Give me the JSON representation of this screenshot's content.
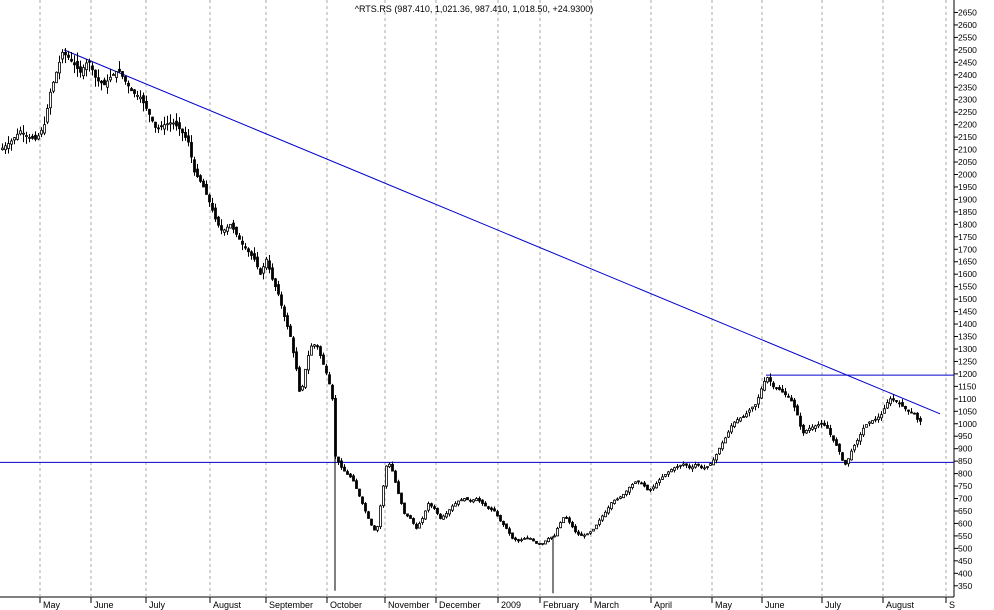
{
  "chart_data": {
    "type": "candlestick",
    "title": "^RTS.RS (987.410, 1,021.36, 987.410, 1,018.50, +24.9300)",
    "ylim": [
      325,
      2680
    ],
    "y_ticks": [
      350,
      400,
      450,
      500,
      550,
      600,
      650,
      700,
      750,
      800,
      850,
      900,
      950,
      1000,
      1050,
      1100,
      1150,
      1200,
      1250,
      1300,
      1350,
      1400,
      1450,
      1500,
      1550,
      1600,
      1650,
      1700,
      1750,
      1800,
      1850,
      1900,
      1950,
      2000,
      2050,
      2100,
      2150,
      2200,
      2250,
      2300,
      2350,
      2400,
      2450,
      2500,
      2550,
      2600,
      2650
    ],
    "x_labels": [
      "May",
      "June",
      "July",
      "August",
      "September",
      "October",
      "November",
      "December",
      "2009",
      "February",
      "March",
      "April",
      "May",
      "June",
      "July",
      "August",
      "S"
    ],
    "grid": "vertical-dashed",
    "series_color": "#000000",
    "line_color": "#0000cc",
    "price_path": [
      [
        0,
        2100
      ],
      [
        10,
        2130
      ],
      [
        20,
        2175
      ],
      [
        28,
        2150
      ],
      [
        36,
        2140
      ],
      [
        44,
        2200
      ],
      [
        50,
        2330
      ],
      [
        56,
        2410
      ],
      [
        62,
        2490
      ],
      [
        68,
        2470
      ],
      [
        74,
        2440
      ],
      [
        80,
        2410
      ],
      [
        88,
        2460
      ],
      [
        96,
        2380
      ],
      [
        104,
        2360
      ],
      [
        110,
        2390
      ],
      [
        118,
        2420
      ],
      [
        124,
        2380
      ],
      [
        132,
        2330
      ],
      [
        140,
        2310
      ],
      [
        148,
        2250
      ],
      [
        156,
        2180
      ],
      [
        164,
        2200
      ],
      [
        172,
        2210
      ],
      [
        180,
        2180
      ],
      [
        188,
        2130
      ],
      [
        194,
        2010
      ],
      [
        202,
        1960
      ],
      [
        210,
        1880
      ],
      [
        216,
        1810
      ],
      [
        222,
        1770
      ],
      [
        230,
        1800
      ],
      [
        236,
        1760
      ],
      [
        242,
        1720
      ],
      [
        248,
        1690
      ],
      [
        254,
        1660
      ],
      [
        260,
        1600
      ],
      [
        266,
        1660
      ],
      [
        272,
        1580
      ],
      [
        278,
        1520
      ],
      [
        284,
        1430
      ],
      [
        290,
        1350
      ],
      [
        296,
        1220
      ],
      [
        300,
        1100
      ],
      [
        304,
        1200
      ],
      [
        310,
        1310
      ],
      [
        316,
        1320
      ],
      [
        322,
        1250
      ],
      [
        328,
        1180
      ],
      [
        332,
        1100
      ],
      [
        335,
        870
      ],
      [
        340,
        830
      ],
      [
        346,
        800
      ],
      [
        352,
        780
      ],
      [
        358,
        720
      ],
      [
        364,
        660
      ],
      [
        370,
        600
      ],
      [
        376,
        560
      ],
      [
        380,
        670
      ],
      [
        386,
        830
      ],
      [
        390,
        840
      ],
      [
        394,
        780
      ],
      [
        398,
        720
      ],
      [
        404,
        640
      ],
      [
        410,
        620
      ],
      [
        416,
        580
      ],
      [
        422,
        620
      ],
      [
        428,
        680
      ],
      [
        434,
        660
      ],
      [
        440,
        620
      ],
      [
        446,
        640
      ],
      [
        452,
        670
      ],
      [
        458,
        690
      ],
      [
        464,
        700
      ],
      [
        470,
        690
      ],
      [
        476,
        700
      ],
      [
        482,
        680
      ],
      [
        488,
        660
      ],
      [
        494,
        650
      ],
      [
        500,
        610
      ],
      [
        506,
        580
      ],
      [
        512,
        540
      ],
      [
        518,
        530
      ],
      [
        524,
        540
      ],
      [
        530,
        540
      ],
      [
        536,
        520
      ],
      [
        542,
        520
      ],
      [
        548,
        540
      ],
      [
        554,
        550
      ],
      [
        558,
        590
      ],
      [
        564,
        630
      ],
      [
        570,
        600
      ],
      [
        576,
        560
      ],
      [
        582,
        550
      ],
      [
        588,
        560
      ],
      [
        594,
        580
      ],
      [
        600,
        620
      ],
      [
        606,
        650
      ],
      [
        612,
        690
      ],
      [
        618,
        700
      ],
      [
        624,
        720
      ],
      [
        630,
        750
      ],
      [
        636,
        770
      ],
      [
        642,
        760
      ],
      [
        648,
        730
      ],
      [
        654,
        750
      ],
      [
        660,
        780
      ],
      [
        666,
        800
      ],
      [
        672,
        820
      ],
      [
        678,
        830
      ],
      [
        684,
        840
      ],
      [
        690,
        820
      ],
      [
        696,
        840
      ],
      [
        702,
        820
      ],
      [
        708,
        830
      ],
      [
        714,
        860
      ],
      [
        720,
        910
      ],
      [
        726,
        950
      ],
      [
        732,
        1000
      ],
      [
        738,
        1020
      ],
      [
        744,
        1030
      ],
      [
        750,
        1060
      ],
      [
        756,
        1080
      ],
      [
        760,
        1130
      ],
      [
        764,
        1170
      ],
      [
        768,
        1190
      ],
      [
        772,
        1150
      ],
      [
        778,
        1140
      ],
      [
        784,
        1120
      ],
      [
        790,
        1100
      ],
      [
        796,
        1050
      ],
      [
        802,
        960
      ],
      [
        808,
        980
      ],
      [
        814,
        990
      ],
      [
        820,
        1000
      ],
      [
        826,
        990
      ],
      [
        832,
        940
      ],
      [
        838,
        900
      ],
      [
        844,
        830
      ],
      [
        848,
        860
      ],
      [
        852,
        900
      ],
      [
        858,
        940
      ],
      [
        864,
        990
      ],
      [
        870,
        1010
      ],
      [
        876,
        1020
      ],
      [
        882,
        1040
      ],
      [
        886,
        1080
      ],
      [
        890,
        1100
      ],
      [
        896,
        1090
      ],
      [
        902,
        1070
      ],
      [
        908,
        1050
      ],
      [
        914,
        1040
      ],
      [
        918,
        1010
      ],
      [
        922,
        1010
      ]
    ],
    "trendlines": [
      {
        "from": [
          64,
          2500
        ],
        "to": [
          940,
          1040
        ]
      },
      {
        "from": [
          0,
          845
        ],
        "to": [
          954,
          845
        ]
      },
      {
        "from": [
          766,
          1195
        ],
        "to": [
          954,
          1195
        ]
      }
    ],
    "spikes": [
      [
        335,
        330
      ],
      [
        553,
        320
      ]
    ]
  }
}
